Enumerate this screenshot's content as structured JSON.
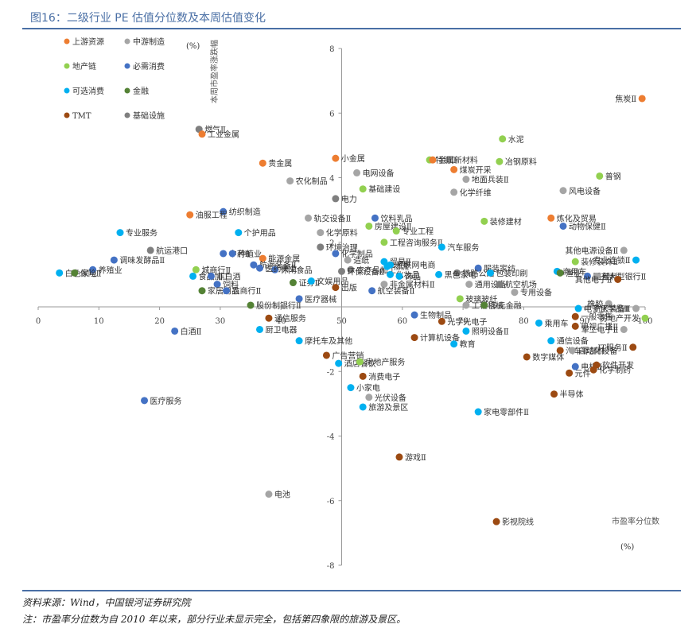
{
  "figure": {
    "title": "图16：二级行业 PE 估值分位数及本周估值变化",
    "source": "资料来源：Wind，中国银河证券研究院",
    "note": "注：市盈率分位数为自 2010 年以来，部分行业未显示完全，包括第四象限的旅游及景区。"
  },
  "chart_data": {
    "type": "scatter",
    "title": "",
    "xlabel": "市盈率分位数",
    "xunit": "(%)",
    "ylabel": "本周市盈率涨跌幅",
    "yunit": "(%)",
    "xlim": [
      0,
      100
    ],
    "ylim": [
      -8,
      8
    ],
    "xticks": [
      0,
      10,
      20,
      30,
      40,
      50,
      60,
      70,
      80,
      90,
      100
    ],
    "yticks": [
      -8,
      -6,
      -4,
      -2,
      2,
      4,
      6,
      8
    ],
    "grid": false,
    "legend_position": "top-left",
    "legend": [
      {
        "name": "上游资源",
        "color": "#ed7d31"
      },
      {
        "name": "中游制造",
        "color": "#a5a5a5"
      },
      {
        "name": "地产链",
        "color": "#92d050"
      },
      {
        "name": "必需消费",
        "color": "#4472c4"
      },
      {
        "name": "可选消费",
        "color": "#00b0f0"
      },
      {
        "name": "金融",
        "color": "#548235"
      },
      {
        "name": "TMT",
        "color": "#9c4a12"
      },
      {
        "name": "基础设施",
        "color": "#7f7f7f"
      }
    ],
    "points": [
      {
        "label": "焦炭Ⅱ",
        "x": 99.5,
        "y": 6.45,
        "g": 0
      },
      {
        "label": "燃气Ⅱ",
        "x": 26.5,
        "y": 5.5,
        "g": 7
      },
      {
        "label": "工业金属",
        "x": 27.0,
        "y": 5.35,
        "g": 0
      },
      {
        "label": "小金属",
        "x": 49.0,
        "y": 4.6,
        "g": 0
      },
      {
        "label": "贵金属",
        "x": 37.0,
        "y": 4.45,
        "g": 0
      },
      {
        "label": "电网设备",
        "x": 52.5,
        "y": 4.15,
        "g": 1
      },
      {
        "label": "农化制品",
        "x": 41.5,
        "y": 3.9,
        "g": 1
      },
      {
        "label": "基础建设",
        "x": 53.5,
        "y": 3.65,
        "g": 2
      },
      {
        "label": "电力",
        "x": 49.0,
        "y": 3.35,
        "g": 7
      },
      {
        "label": "水泥",
        "x": 76.5,
        "y": 5.2,
        "g": 2
      },
      {
        "label": "特钢Ⅱ",
        "x": 64.5,
        "y": 4.55,
        "g": 2
      },
      {
        "label": "金属新材料",
        "x": 65.0,
        "y": 4.55,
        "g": 0
      },
      {
        "label": "冶钢原料",
        "x": 76.0,
        "y": 4.5,
        "g": 2
      },
      {
        "label": "煤炭开采",
        "x": 68.5,
        "y": 4.25,
        "g": 0
      },
      {
        "label": "地面兵装Ⅱ",
        "x": 70.5,
        "y": 3.95,
        "g": 1
      },
      {
        "label": "化学纤维",
        "x": 68.5,
        "y": 3.55,
        "g": 1
      },
      {
        "label": "普钢",
        "x": 92.5,
        "y": 4.05,
        "g": 2
      },
      {
        "label": "风电设备",
        "x": 86.5,
        "y": 3.6,
        "g": 1
      },
      {
        "label": "纺织制造",
        "x": 30.5,
        "y": 2.95,
        "g": 3
      },
      {
        "label": "油服工程",
        "x": 25.0,
        "y": 2.85,
        "g": 0
      },
      {
        "label": "轨交设备Ⅱ",
        "x": 44.5,
        "y": 2.75,
        "g": 1
      },
      {
        "label": "饮料乳品",
        "x": 55.5,
        "y": 2.75,
        "g": 3
      },
      {
        "label": "房屋建设Ⅱ",
        "x": 54.5,
        "y": 2.5,
        "g": 2
      },
      {
        "label": "专业工程",
        "x": 59.0,
        "y": 2.35,
        "g": 2
      },
      {
        "label": "装修建材",
        "x": 73.5,
        "y": 2.65,
        "g": 2
      },
      {
        "label": "炼化及贸易",
        "x": 84.5,
        "y": 2.75,
        "g": 0
      },
      {
        "label": "动物保健Ⅱ",
        "x": 86.5,
        "y": 2.5,
        "g": 3
      },
      {
        "label": "专业服务",
        "x": 13.5,
        "y": 2.3,
        "g": 4
      },
      {
        "label": "个护用品",
        "x": 33.0,
        "y": 2.3,
        "g": 4
      },
      {
        "label": "化学原料",
        "x": 46.5,
        "y": 2.3,
        "g": 1
      },
      {
        "label": "工程咨询服务Ⅱ",
        "x": 57.0,
        "y": 2.0,
        "g": 2
      },
      {
        "label": "航运港口",
        "x": 18.5,
        "y": 1.75,
        "g": 7
      },
      {
        "label": "环境治理",
        "x": 46.5,
        "y": 1.85,
        "g": 7
      },
      {
        "label": "汽车服务",
        "x": 66.5,
        "y": 1.85,
        "g": 4
      },
      {
        "label": "其他电源设备Ⅱ",
        "x": 96.5,
        "y": 1.75,
        "g": 1
      },
      {
        "label": "调味发酵品Ⅱ",
        "x": 12.5,
        "y": 1.45,
        "g": 3
      },
      {
        "label": "中药Ⅱ",
        "x": 30.5,
        "y": 1.65,
        "g": 3
      },
      {
        "label": "种植业",
        "x": 32.0,
        "y": 1.65,
        "g": 3
      },
      {
        "label": "能源金属",
        "x": 37.0,
        "y": 1.5,
        "g": 0
      },
      {
        "label": "化学制品",
        "x": 49.0,
        "y": 1.65,
        "g": 3
      },
      {
        "label": "造纸",
        "x": 51.0,
        "y": 1.45,
        "g": 1
      },
      {
        "label": "贸易Ⅱ",
        "x": 57.0,
        "y": 1.4,
        "g": 4
      },
      {
        "label": "服装家纺",
        "x": 72.5,
        "y": 1.2,
        "g": 3
      },
      {
        "label": "装修装饰Ⅱ",
        "x": 88.5,
        "y": 1.4,
        "g": 2
      },
      {
        "label": "专业连锁Ⅱ",
        "x": 98.5,
        "y": 1.45,
        "g": 4
      },
      {
        "label": "航海装备Ⅱ",
        "x": 35.5,
        "y": 1.3,
        "g": 3
      },
      {
        "label": "城商行Ⅱ",
        "x": 26.0,
        "y": 1.15,
        "g": 2
      },
      {
        "label": "农产品加工",
        "x": 51.5,
        "y": 1.15,
        "g": 7
      },
      {
        "label": "物流",
        "x": 57.5,
        "y": 1.25,
        "g": 4
      },
      {
        "label": "互联网电商",
        "x": 58.0,
        "y": 1.3,
        "g": 4
      },
      {
        "label": "铁路公路",
        "x": 69.0,
        "y": 1.05,
        "g": 7
      },
      {
        "label": "商用车",
        "x": 85.5,
        "y": 1.1,
        "g": 4
      },
      {
        "label": "白色家电",
        "x": 3.5,
        "y": 1.05,
        "g": 4
      },
      {
        "label": "养殖业",
        "x": 9.0,
        "y": 1.15,
        "g": 3
      },
      {
        "label": "保险Ⅱ",
        "x": 6.0,
        "y": 1.05,
        "g": 5
      },
      {
        "label": "食品加工",
        "x": 25.5,
        "y": 0.95,
        "g": 4
      },
      {
        "label": "休闲食品",
        "x": 39.0,
        "y": 1.15,
        "g": 3
      },
      {
        "label": "医药商业",
        "x": 36.5,
        "y": 1.2,
        "g": 3
      },
      {
        "label": "环保设备Ⅱ",
        "x": 50.0,
        "y": 1.1,
        "g": 7
      },
      {
        "label": "化妆品",
        "x": 58.0,
        "y": 1.0,
        "g": 4
      },
      {
        "label": "黑色家电",
        "x": 66.0,
        "y": 1.0,
        "g": 4
      },
      {
        "label": "包装印刷",
        "x": 74.5,
        "y": 1.05,
        "g": 4
      },
      {
        "label": "渔业",
        "x": 86.0,
        "y": 1.05,
        "g": 5
      },
      {
        "label": "国有大型银行Ⅱ",
        "x": 90.5,
        "y": 0.95,
        "g": 3
      },
      {
        "label": "塑料",
        "x": 92.0,
        "y": 0.95,
        "g": 1
      },
      {
        "label": "非白酒",
        "x": 28.5,
        "y": 0.95,
        "g": 3
      },
      {
        "label": "饲料",
        "x": 29.5,
        "y": 0.7,
        "g": 3
      },
      {
        "label": "证券Ⅱ",
        "x": 42.0,
        "y": 0.75,
        "g": 5
      },
      {
        "label": "文娱用品",
        "x": 45.0,
        "y": 0.8,
        "g": 4
      },
      {
        "label": "饰品",
        "x": 59.5,
        "y": 0.95,
        "g": 4
      },
      {
        "label": "非金属材料Ⅱ",
        "x": 57.0,
        "y": 0.7,
        "g": 1
      },
      {
        "label": "通用设备",
        "x": 71.0,
        "y": 0.7,
        "g": 1
      },
      {
        "label": "航空机场",
        "x": 76.0,
        "y": 0.7,
        "g": 7
      },
      {
        "label": "其他电子Ⅱ",
        "x": 95.5,
        "y": 0.85,
        "g": 6
      },
      {
        "label": "家居用品",
        "x": 27.0,
        "y": 0.5,
        "g": 5
      },
      {
        "label": "农商行Ⅱ",
        "x": 31.0,
        "y": 0.5,
        "g": 3
      },
      {
        "label": "出版",
        "x": 49.0,
        "y": 0.6,
        "g": 6
      },
      {
        "label": "航空装备Ⅱ",
        "x": 55.0,
        "y": 0.5,
        "g": 3
      },
      {
        "label": "专用设备",
        "x": 78.5,
        "y": 0.45,
        "g": 1
      },
      {
        "label": "医疗器械",
        "x": 43.0,
        "y": 0.25,
        "g": 3
      },
      {
        "label": "玻璃玻纤",
        "x": 69.5,
        "y": 0.25,
        "g": 2
      },
      {
        "label": "工程机械",
        "x": 70.5,
        "y": 0.05,
        "g": 1
      },
      {
        "label": "多元金融",
        "x": 73.5,
        "y": 0.05,
        "g": 5
      },
      {
        "label": "橡胶",
        "x": 94.0,
        "y": 0.1,
        "g": 1
      },
      {
        "label": "股份制银行Ⅱ",
        "x": 35.0,
        "y": 0.05,
        "g": 5
      },
      {
        "label": "电子化学品Ⅱ",
        "x": 89.0,
        "y": -0.05,
        "g": 4
      },
      {
        "label": "航天装备Ⅱ",
        "x": 98.5,
        "y": -0.05,
        "g": 1
      },
      {
        "label": "通信服务",
        "x": 38.0,
        "y": -0.35,
        "g": 6
      },
      {
        "label": "生物制品",
        "x": 62.0,
        "y": -0.25,
        "g": 3
      },
      {
        "label": "一般零售",
        "x": 88.5,
        "y": -0.3,
        "g": 6
      },
      {
        "label": "光学光电子",
        "x": 66.5,
        "y": -0.45,
        "g": 6
      },
      {
        "label": "房地产开发",
        "x": 100.0,
        "y": -0.35,
        "g": 2
      },
      {
        "label": "乘用车",
        "x": 82.5,
        "y": -0.5,
        "g": 4
      },
      {
        "label": "白酒Ⅱ",
        "x": 22.5,
        "y": -0.75,
        "g": 3
      },
      {
        "label": "厨卫电器",
        "x": 36.5,
        "y": -0.7,
        "g": 4
      },
      {
        "label": "电视广播Ⅱ",
        "x": 88.5,
        "y": -0.6,
        "g": 6
      },
      {
        "label": "军工电子Ⅱ",
        "x": 96.5,
        "y": -0.7,
        "g": 1
      },
      {
        "label": "计算机设备",
        "x": 62.0,
        "y": -0.95,
        "g": 6
      },
      {
        "label": "照明设备Ⅱ",
        "x": 70.5,
        "y": -0.75,
        "g": 4
      },
      {
        "label": "摩托车及其他",
        "x": 43.0,
        "y": -1.05,
        "g": 4
      },
      {
        "label": "通信设备",
        "x": 84.5,
        "y": -1.05,
        "g": 4
      },
      {
        "label": "教育",
        "x": 68.5,
        "y": -1.15,
        "g": 4
      },
      {
        "label": "汽车零部件",
        "x": 86.0,
        "y": -1.35,
        "g": 6
      },
      {
        "label": "自动化设备",
        "x": 88.0,
        "y": -1.35,
        "g": 1
      },
      {
        "label": "IT服务Ⅱ",
        "x": 98.0,
        "y": -1.25,
        "g": 6
      },
      {
        "label": "广告营销",
        "x": 47.5,
        "y": -1.5,
        "g": 6
      },
      {
        "label": "酒店餐饮",
        "x": 49.5,
        "y": -1.75,
        "g": 4
      },
      {
        "label": "房地产服务",
        "x": 53.0,
        "y": -1.7,
        "g": 2
      },
      {
        "label": "数字媒体",
        "x": 80.5,
        "y": -1.55,
        "g": 6
      },
      {
        "label": "电机Ⅱ",
        "x": 88.5,
        "y": -1.85,
        "g": 3
      },
      {
        "label": "软件开发",
        "x": 92.0,
        "y": -1.8,
        "g": 6
      },
      {
        "label": "化学制药",
        "x": 91.5,
        "y": -1.95,
        "g": 6
      },
      {
        "label": "元件",
        "x": 87.5,
        "y": -2.05,
        "g": 6
      },
      {
        "label": "消费电子",
        "x": 53.5,
        "y": -2.15,
        "g": 6
      },
      {
        "label": "小家电",
        "x": 51.5,
        "y": -2.5,
        "g": 4
      },
      {
        "label": "光伏设备",
        "x": 54.5,
        "y": -2.8,
        "g": 1
      },
      {
        "label": "半导体",
        "x": 85.0,
        "y": -2.7,
        "g": 6
      },
      {
        "label": "医疗服务",
        "x": 17.5,
        "y": -2.9,
        "g": 3
      },
      {
        "label": "旅游及景区",
        "x": 53.5,
        "y": -3.1,
        "g": 4
      },
      {
        "label": "家电零部件Ⅱ",
        "x": 72.5,
        "y": -3.25,
        "g": 4
      },
      {
        "label": "游戏Ⅱ",
        "x": 59.5,
        "y": -4.65,
        "g": 6
      },
      {
        "label": "电池",
        "x": 38.0,
        "y": -5.8,
        "g": 1
      },
      {
        "label": "影视院线",
        "x": 75.5,
        "y": -6.65,
        "g": 6
      }
    ]
  }
}
